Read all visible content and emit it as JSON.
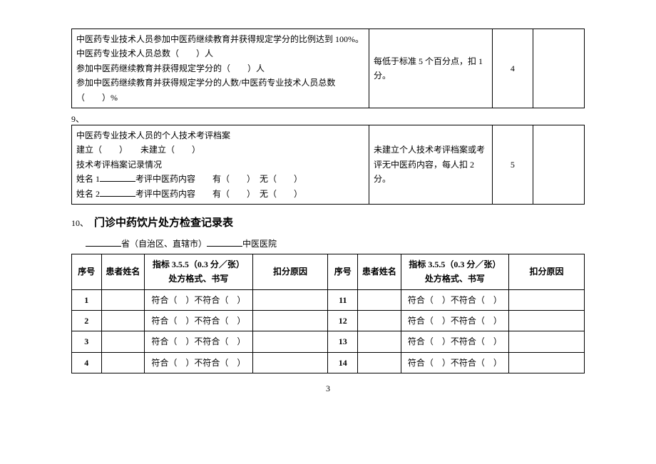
{
  "table1": {
    "c1_l1": "中医药专业技术人员参加中医药继续教育并获得规定学分的比例达到 100%。",
    "c1_l2": "中医药专业技术人员总数（　　）人",
    "c1_l3": "参加中医药继续教育并获得规定学分的（　　）人",
    "c1_l4": "参加中医药继续教育并获得规定学分的人数/中医药专业技术人员总数（　　）%",
    "c2": "每低于标准 5 个百分点，扣 1 分。",
    "c3": "4"
  },
  "label_9": "9、",
  "table2": {
    "c1_l1": "中医药专业技术人员的个人技术考评档案",
    "c1_l2": "建立（　　）　　未建立（　　）",
    "c1_l3": "技术考评档案记录情况",
    "c1_l4a": "姓名 1",
    "c1_l4b": "考评中医药内容　　有（　　）　无（　　）",
    "c1_l5a": "姓名 2",
    "c1_l5b": "考评中医药内容　　有（　　）　无（　　）",
    "c2": "未建立个人技术考评档案或考评无中医药内容，每人扣 2 分。",
    "c3": "5"
  },
  "label_10": "10、",
  "section_title": "门诊中药饮片处方检查记录表",
  "hospital_line_1": "省（自治区、直辖市）",
  "hospital_line_2": "中医医院",
  "rx_headers": {
    "seq": "序号",
    "name": "患者姓名",
    "ind_line1": "指标 3.5.5（0.3 分／张）",
    "ind_line2": "处方格式、书写",
    "reason": "扣分原因"
  },
  "cell_text": "符合（　）不符合（　）",
  "left_seq": [
    "1",
    "2",
    "3",
    "4"
  ],
  "right_seq": [
    "11",
    "12",
    "13",
    "14"
  ],
  "page_number": "3"
}
